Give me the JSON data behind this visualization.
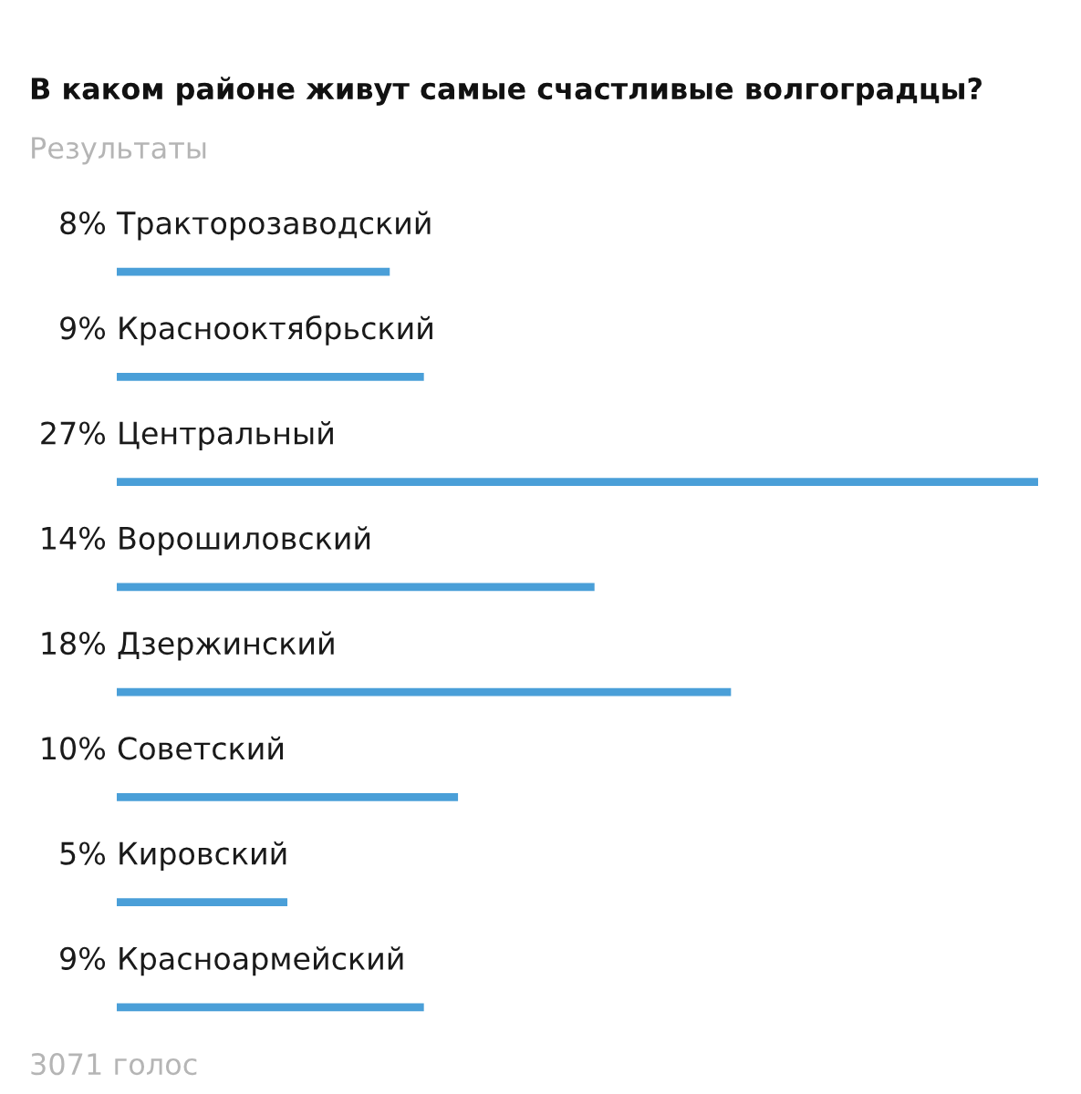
{
  "chart_data": {
    "type": "bar",
    "orientation": "horizontal",
    "title": "В каком районе живут самые счастливые волгоградцы?",
    "subtitle": "Результаты",
    "categories": [
      "Тракторозаводский",
      "Краснооктябрьский",
      "Центральный",
      "Ворошиловский",
      "Дзержинский",
      "Советский",
      "Кировский",
      "Красноармейский"
    ],
    "values": [
      8,
      9,
      27,
      14,
      18,
      10,
      5,
      9
    ],
    "value_labels": [
      "8%",
      "9%",
      "27%",
      "14%",
      "18%",
      "10%",
      "5%",
      "9%"
    ],
    "color": "#4a9fd8",
    "xlim": [
      0,
      27
    ],
    "annotations": [
      "3071 голос"
    ]
  }
}
